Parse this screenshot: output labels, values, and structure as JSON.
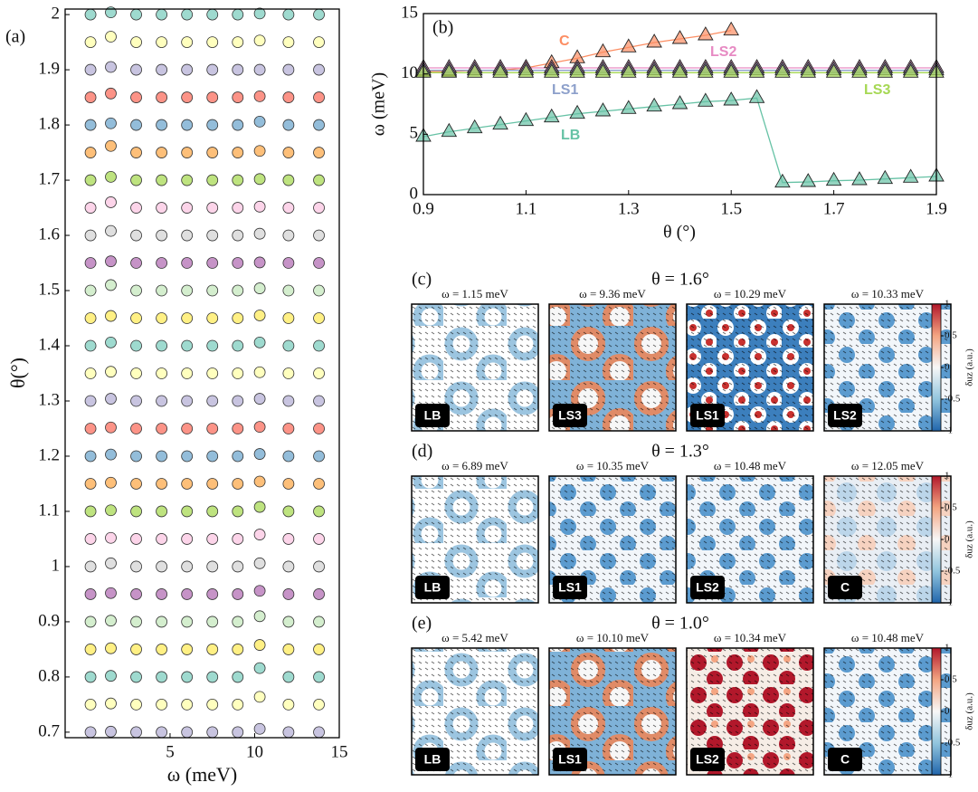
{
  "chart_data": [
    {
      "type": "scatter",
      "panel_label": "(a)",
      "xlabel": "ω (meV)",
      "ylabel": "θ(°)",
      "xlim": [
        -1.2,
        15
      ],
      "ylim": [
        0.69,
        2.01
      ],
      "xticks": [
        5,
        10,
        15
      ],
      "yticks": [
        0.7,
        0.8,
        0.9,
        1,
        1.1,
        1.2,
        1.3,
        1.4,
        1.5,
        1.6,
        1.7,
        1.8,
        1.9,
        2
      ],
      "x": [
        0.3,
        1.5,
        3,
        4.5,
        6,
        7.5,
        9,
        10.3,
        12,
        13.8
      ],
      "series": [
        {
          "color": "#8dd3c7",
          "values": [
            2,
            2.004,
            2,
            2,
            2,
            2,
            2,
            2.002,
            2,
            2
          ]
        },
        {
          "color": "#ffffb3",
          "values": [
            1.95,
            1.96,
            1.95,
            1.95,
            1.95,
            1.95,
            1.95,
            1.953,
            1.95,
            1.95
          ]
        },
        {
          "color": "#bebada",
          "values": [
            1.9,
            1.905,
            1.9,
            1.9,
            1.9,
            1.9,
            1.9,
            1.9,
            1.9,
            1.9
          ]
        },
        {
          "color": "#fb8072",
          "values": [
            1.85,
            1.857,
            1.85,
            1.85,
            1.85,
            1.85,
            1.85,
            1.852,
            1.85,
            1.85
          ]
        },
        {
          "color": "#80b1d3",
          "values": [
            1.8,
            1.803,
            1.8,
            1.8,
            1.8,
            1.8,
            1.8,
            1.806,
            1.8,
            1.8
          ]
        },
        {
          "color": "#fdb462",
          "values": [
            1.75,
            1.762,
            1.75,
            1.75,
            1.75,
            1.75,
            1.75,
            1.753,
            1.75,
            1.75
          ]
        },
        {
          "color": "#b3de69",
          "values": [
            1.7,
            1.706,
            1.7,
            1.7,
            1.7,
            1.7,
            1.7,
            1.702,
            1.7,
            1.7
          ]
        },
        {
          "color": "#fccde5",
          "values": [
            1.65,
            1.66,
            1.65,
            1.65,
            1.65,
            1.65,
            1.65,
            1.652,
            1.65,
            1.65
          ]
        },
        {
          "color": "#d9d9d9",
          "values": [
            1.6,
            1.608,
            1.6,
            1.6,
            1.6,
            1.6,
            1.6,
            1.603,
            1.6,
            1.6
          ]
        },
        {
          "color": "#bc80bd",
          "values": [
            1.55,
            1.553,
            1.55,
            1.55,
            1.55,
            1.55,
            1.55,
            1.551,
            1.55,
            1.55
          ]
        },
        {
          "color": "#ccebc5",
          "values": [
            1.5,
            1.51,
            1.5,
            1.5,
            1.5,
            1.5,
            1.5,
            1.504,
            1.5,
            1.5
          ]
        },
        {
          "color": "#ffed6f",
          "values": [
            1.45,
            1.454,
            1.45,
            1.45,
            1.45,
            1.45,
            1.45,
            1.455,
            1.45,
            1.45
          ]
        },
        {
          "color": "#8dd3c7",
          "values": [
            1.4,
            1.406,
            1.4,
            1.4,
            1.4,
            1.4,
            1.4,
            1.406,
            1.4,
            1.4
          ]
        },
        {
          "color": "#ffffb3",
          "values": [
            1.35,
            1.353,
            1.35,
            1.35,
            1.35,
            1.35,
            1.35,
            1.352,
            1.35,
            1.35
          ]
        },
        {
          "color": "#bebada",
          "values": [
            1.3,
            1.304,
            1.3,
            1.3,
            1.3,
            1.3,
            1.3,
            1.304,
            1.3,
            1.3
          ]
        },
        {
          "color": "#fb8072",
          "values": [
            1.25,
            1.252,
            1.25,
            1.25,
            1.25,
            1.25,
            1.25,
            1.253,
            1.25,
            1.25
          ]
        },
        {
          "color": "#80b1d3",
          "values": [
            1.2,
            1.203,
            1.2,
            1.2,
            1.2,
            1.2,
            1.2,
            1.204,
            1.2,
            1.2
          ]
        },
        {
          "color": "#fdb462",
          "values": [
            1.15,
            1.152,
            1.15,
            1.15,
            1.15,
            1.15,
            1.15,
            1.154,
            1.15,
            1.15
          ]
        },
        {
          "color": "#b3de69",
          "values": [
            1.1,
            1.102,
            1.1,
            1.1,
            1.1,
            1.1,
            1.1,
            1.108,
            1.1,
            1.1
          ]
        },
        {
          "color": "#fccde5",
          "values": [
            1.05,
            1.052,
            1.05,
            1.05,
            1.05,
            1.05,
            1.05,
            1.058,
            1.05,
            1.05
          ]
        },
        {
          "color": "#d9d9d9",
          "values": [
            1,
            1.006,
            1,
            1,
            1,
            1,
            1,
            1.006,
            1,
            1
          ]
        },
        {
          "color": "#bc80bd",
          "values": [
            0.95,
            0.952,
            0.95,
            0.95,
            0.95,
            0.95,
            0.95,
            0.956,
            0.95,
            0.95
          ]
        },
        {
          "color": "#ccebc5",
          "values": [
            0.9,
            0.902,
            0.9,
            0.9,
            0.9,
            0.9,
            0.9,
            0.91,
            0.9,
            0.9
          ]
        },
        {
          "color": "#ffed6f",
          "values": [
            0.85,
            0.852,
            0.85,
            0.85,
            0.85,
            0.85,
            0.85,
            0.858,
            0.85,
            0.85
          ]
        },
        {
          "color": "#8dd3c7",
          "values": [
            0.8,
            0.802,
            0.8,
            0.8,
            0.8,
            0.8,
            0.8,
            0.816,
            0.8,
            0.8
          ]
        },
        {
          "color": "#ffffb3",
          "values": [
            0.75,
            0.752,
            0.75,
            0.75,
            0.75,
            0.75,
            0.75,
            0.764,
            0.75,
            0.75
          ]
        },
        {
          "color": "#bebada",
          "values": [
            0.7,
            0.701,
            0.7,
            0.7,
            0.7,
            0.7,
            0.7,
            0.706,
            0.7,
            0.7
          ]
        }
      ]
    },
    {
      "type": "line",
      "panel_label": "(b)",
      "xlabel": "θ (°)",
      "ylabel": "ω (meV)",
      "xlim": [
        0.9,
        1.9
      ],
      "ylim": [
        0,
        15
      ],
      "xticks": [
        0.9,
        1.1,
        1.3,
        1.5,
        1.7,
        1.9
      ],
      "yticks": [
        0,
        5,
        10,
        15
      ],
      "x": [
        0.9,
        0.95,
        1,
        1.05,
        1.1,
        1.15,
        1.2,
        1.25,
        1.3,
        1.35,
        1.4,
        1.45,
        1.5,
        1.55,
        1.6,
        1.65,
        1.7,
        1.75,
        1.8,
        1.85,
        1.9
      ],
      "series": [
        {
          "name": "C",
          "color": "#fc8d62",
          "values": [
            10.2,
            10.2,
            10.3,
            10.3,
            10.5,
            10.9,
            11.3,
            11.8,
            12.2,
            12.6,
            12.9,
            13.2,
            13.6,
            null,
            null,
            null,
            null,
            null,
            null,
            null,
            null
          ]
        },
        {
          "name": "LS2",
          "color": "#e78ac3",
          "values": [
            10.5,
            10.5,
            10.5,
            10.5,
            10.5,
            10.5,
            10.5,
            10.5,
            10.5,
            10.5,
            10.5,
            10.5,
            10.5,
            10.5,
            10.5,
            10.5,
            10.5,
            10.5,
            10.5,
            10.5,
            10.5
          ]
        },
        {
          "name": "LS1",
          "color": "#8da0cb",
          "values": [
            10.3,
            10.3,
            10.3,
            10.3,
            10.3,
            10.3,
            10.3,
            10.3,
            10.3,
            10.3,
            10.3,
            10.3,
            10.3,
            10.3,
            10.3,
            10.3,
            10.3,
            10.3,
            10.3,
            10.3,
            10.3
          ]
        },
        {
          "name": "LS3",
          "color": "#a6d854",
          "values": [
            10.1,
            10.1,
            10.1,
            10.1,
            10.1,
            10.1,
            10.1,
            10.1,
            10.1,
            10.1,
            10.1,
            10.1,
            10.1,
            10.1,
            10.1,
            10.1,
            10.1,
            10.1,
            10.1,
            10.1,
            10.1
          ]
        },
        {
          "name": "LB",
          "color": "#66c2a5",
          "values": [
            4.8,
            5.2,
            5.5,
            5.8,
            6.1,
            6.4,
            6.7,
            6.9,
            7.1,
            7.3,
            7.5,
            7.7,
            7.8,
            8.0,
            1.0,
            1.05,
            1.15,
            1.2,
            1.3,
            1.4,
            1.5
          ]
        }
      ]
    },
    {
      "type": "mode-grid",
      "panel_label": "(c)",
      "title": "θ = 1.6°",
      "images": [
        {
          "label": "ω = 1.15 meV",
          "mode": "LB"
        },
        {
          "label": "ω = 9.36 meV",
          "mode": "LS3"
        },
        {
          "label": "ω = 10.29 meV",
          "mode": "LS1"
        },
        {
          "label": "ω = 10.33 meV",
          "mode": "LS2"
        }
      ],
      "clim": [
        -1,
        1
      ],
      "cticks": [
        1,
        0.5,
        0,
        -0.5,
        -1
      ],
      "clabel": "δuz (a.u.)"
    },
    {
      "type": "mode-grid",
      "panel_label": "(d)",
      "title": "θ = 1.3°",
      "images": [
        {
          "label": "ω = 6.89 meV",
          "mode": "LB"
        },
        {
          "label": "ω = 10.35 meV",
          "mode": "LS1"
        },
        {
          "label": "ω = 10.48 meV",
          "mode": "LS2"
        },
        {
          "label": "ω = 12.05 meV",
          "mode": "C"
        }
      ],
      "clim": [
        -1,
        1
      ],
      "cticks": [
        1,
        0.5,
        0,
        -0.5,
        -1
      ],
      "clabel": "δuz (a.u.)"
    },
    {
      "type": "mode-grid",
      "panel_label": "(e)",
      "title": "θ = 1.0°",
      "images": [
        {
          "label": "ω = 5.42 meV",
          "mode": "LB"
        },
        {
          "label": "ω = 10.10 meV",
          "mode": "LS1"
        },
        {
          "label": "ω = 10.34 meV",
          "mode": "LS2"
        },
        {
          "label": "ω = 10.48 meV",
          "mode": "C"
        }
      ],
      "clim": [
        -1,
        1
      ],
      "cticks": [
        1,
        0.5,
        0,
        -0.5,
        -1
      ],
      "clabel": "δuz (a.u.)"
    }
  ]
}
